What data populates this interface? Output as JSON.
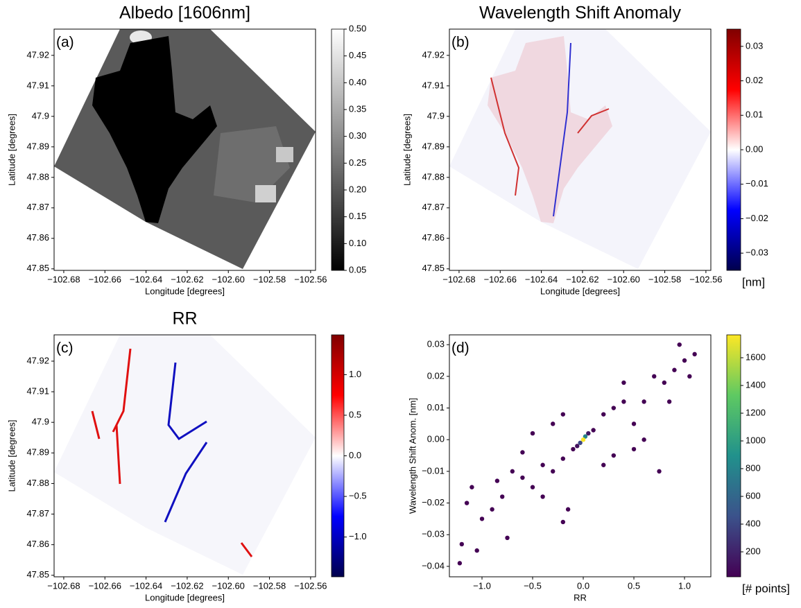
{
  "chart_data": [
    {
      "type": "image",
      "title": "Albedo [1606nm]",
      "panel_label": "(a)",
      "x_label": "Longitude [degrees]",
      "y_label": "Latitude [degrees]",
      "xlim": [
        -102.6847,
        -102.5576
      ],
      "xticks": [
        {
          "value": -102.68,
          "label": "−102.68"
        },
        {
          "value": -102.66,
          "label": "−102.66"
        },
        {
          "value": -102.64,
          "label": "−102.64"
        },
        {
          "value": -102.62,
          "label": "−102.62"
        },
        {
          "value": -102.6,
          "label": "−102.60"
        },
        {
          "value": -102.58,
          "label": "−102.58"
        },
        {
          "value": -102.56,
          "label": "−102.56"
        }
      ],
      "ylim": [
        47.8495,
        47.9286
      ],
      "yticks": [
        47.85,
        47.86,
        47.87,
        47.88,
        47.89,
        47.9,
        47.91,
        47.92
      ],
      "colormap": "gray",
      "clim": [
        0.05,
        0.5
      ],
      "cticks": [
        0.05,
        {
          "value": 0.1,
          "label": "0.10"
        },
        0.15,
        {
          "value": 0.2,
          "label": "0.20"
        },
        0.25,
        {
          "value": 0.3,
          "label": "0.30"
        },
        0.35,
        {
          "value": 0.4,
          "label": "0.40"
        },
        0.45,
        {
          "value": 0.5,
          "label": "0.50"
        }
      ]
    },
    {
      "type": "image",
      "title": "Wavelength Shift Anomaly",
      "panel_label": "(b)",
      "x_label": "Longitude [degrees]",
      "y_label": "Latitude [degrees]",
      "xlim": [
        -102.6847,
        -102.5576
      ],
      "xticks": [
        {
          "value": -102.68,
          "label": "−102.68"
        },
        {
          "value": -102.66,
          "label": "−102.66"
        },
        {
          "value": -102.64,
          "label": "−102.64"
        },
        {
          "value": -102.62,
          "label": "−102.62"
        },
        {
          "value": -102.6,
          "label": "−102.60"
        },
        {
          "value": -102.58,
          "label": "−102.58"
        },
        {
          "value": -102.56,
          "label": "−102.56"
        }
      ],
      "ylim": [
        47.8495,
        47.9286
      ],
      "yticks": [
        47.85,
        47.86,
        47.87,
        47.88,
        47.89,
        47.9,
        47.91,
        47.92
      ],
      "colormap": "seismic",
      "clim": [
        -0.035,
        0.035
      ],
      "colorbar_label": "[nm]",
      "cticks": [
        {
          "value": -0.03,
          "label": "−0.03"
        },
        {
          "value": -0.02,
          "label": "−0.02"
        },
        {
          "value": -0.01,
          "label": "−0.01"
        },
        {
          "value": 0,
          "label": "0.00"
        },
        0.01,
        0.02,
        0.03
      ]
    },
    {
      "type": "image",
      "title": "RR",
      "panel_label": "(c)",
      "x_label": "Longitude [degrees]",
      "y_label": "Latitude [degrees]",
      "xlim": [
        -102.6847,
        -102.5576
      ],
      "xticks": [
        {
          "value": -102.68,
          "label": "−102.68"
        },
        {
          "value": -102.66,
          "label": "−102.66"
        },
        {
          "value": -102.64,
          "label": "−102.64"
        },
        {
          "value": -102.62,
          "label": "−102.62"
        },
        {
          "value": -102.6,
          "label": "−102.60"
        },
        {
          "value": -102.58,
          "label": "−102.58"
        },
        {
          "value": -102.56,
          "label": "−102.56"
        }
      ],
      "ylim": [
        47.8495,
        47.9286
      ],
      "yticks": [
        47.85,
        47.86,
        47.87,
        47.88,
        47.89,
        47.9,
        47.91,
        47.92
      ],
      "colormap": "seismic",
      "clim": [
        -1.49,
        1.49
      ],
      "cticks": [
        {
          "value": -1.0,
          "label": "−1.0"
        },
        {
          "value": -0.5,
          "label": "−0.5"
        },
        {
          "value": 0,
          "label": "0.0"
        },
        0.5,
        {
          "value": 1.0,
          "label": "1.0"
        }
      ]
    },
    {
      "type": "scatter",
      "panel_label": "(d)",
      "x_label": "RR",
      "y_label": "Wavelength Shift Anom. [nm]",
      "xlim": [
        -1.322,
        1.26
      ],
      "xticks": [
        {
          "value": -1.0,
          "label": "−1.0"
        },
        {
          "value": -0.5,
          "label": "−0.5"
        },
        {
          "value": 0,
          "label": "0.0"
        },
        0.5,
        {
          "value": 1.0,
          "label": "1.0"
        }
      ],
      "ylim": [
        -0.0433,
        0.0331
      ],
      "yticks": [
        {
          "value": -0.04,
          "label": "−0.04"
        },
        {
          "value": -0.03,
          "label": "−0.03"
        },
        {
          "value": -0.02,
          "label": "−0.02"
        },
        {
          "value": -0.01,
          "label": "−0.01"
        },
        {
          "value": 0,
          "label": "0.00"
        },
        0.01,
        0.02,
        0.03
      ],
      "colormap": "viridis",
      "clim": [
        20,
        1765
      ],
      "colorbar_label": "[# points]",
      "cticks": [
        200,
        400,
        600,
        800,
        1000,
        1200,
        1400,
        1600
      ],
      "x": [
        -1.22,
        -1.2,
        -1.05,
        -0.75,
        -1.15,
        -1.0,
        -0.9,
        -0.8,
        -0.2,
        -0.15,
        0.75,
        0.95,
        1.1,
        1.0,
        0.9,
        0.8,
        0.6,
        0.7,
        -0.6,
        -0.5,
        -0.7,
        -0.4,
        0.4,
        0.5,
        0.3,
        -0.3,
        0.2,
        -0.2,
        -0.3,
        0.3,
        0.5,
        -0.5,
        0.6,
        -0.6,
        0.2,
        -0.2,
        0.85,
        -0.85,
        1.05,
        -1.1,
        0.4,
        -0.4,
        0.1,
        -0.1,
        -0.06,
        0.05,
        -0.03,
        0.02,
        0.0
      ],
      "values": [
        -0.039,
        -0.033,
        -0.035,
        -0.031,
        -0.02,
        -0.025,
        -0.022,
        -0.018,
        -0.026,
        -0.022,
        -0.01,
        0.03,
        0.027,
        0.025,
        0.022,
        0.018,
        0.012,
        0.02,
        -0.012,
        -0.015,
        -0.01,
        -0.008,
        0.012,
        0.005,
        0.01,
        -0.01,
        0.008,
        -0.006,
        0.005,
        -0.005,
        -0.003,
        0.002,
        0.0,
        -0.004,
        -0.008,
        0.008,
        0.012,
        -0.013,
        0.02,
        -0.015,
        0.018,
        -0.018,
        0.003,
        -0.003,
        -0.002,
        0.002,
        -0.001,
        0.001,
        0.0
      ],
      "counts": [
        1,
        1,
        1,
        1,
        1,
        1,
        1,
        1,
        1,
        1,
        1,
        1,
        1,
        1,
        1,
        1,
        1,
        1,
        1,
        1,
        1,
        1,
        1,
        1,
        1,
        1,
        1,
        1,
        1,
        1,
        1,
        1,
        1,
        1,
        1,
        1,
        1,
        1,
        1,
        1,
        1,
        1,
        20,
        20,
        100,
        150,
        400,
        800,
        1750
      ]
    }
  ]
}
